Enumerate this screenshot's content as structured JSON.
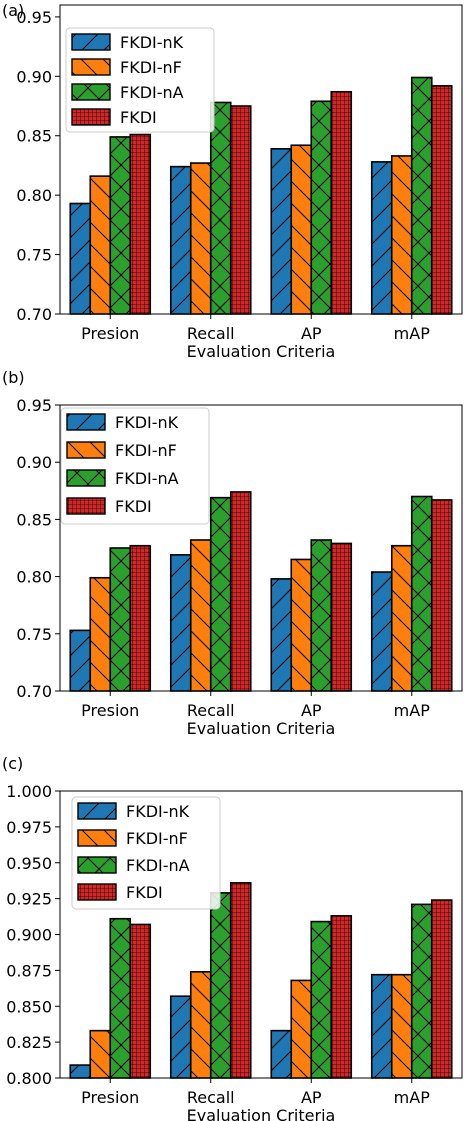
{
  "panels": [
    {
      "label": "(a)",
      "chart_data": {
        "type": "bar",
        "categories": [
          "Presion",
          "Recall",
          "AP",
          "mAP"
        ],
        "xlabel": "Evaluation Criteria",
        "ylabel": "",
        "ylim": [
          0.7,
          0.96
        ],
        "yticks": [
          "0.70",
          "0.75",
          "0.80",
          "0.85",
          "0.90",
          "0.95"
        ],
        "legend_position": "top-left",
        "series": [
          {
            "name": "FKDI-nK",
            "color": "#1f77b4",
            "hatch": "fwd",
            "values": [
              0.793,
              0.824,
              0.839,
              0.828
            ]
          },
          {
            "name": "FKDI-nF",
            "color": "#ff7f0e",
            "hatch": "back",
            "values": [
              0.816,
              0.827,
              0.842,
              0.833
            ]
          },
          {
            "name": "FKDI-nA",
            "color": "#2ca02c",
            "hatch": "cross",
            "values": [
              0.849,
              0.878,
              0.879,
              0.899
            ]
          },
          {
            "name": "FKDI",
            "color": "#d62728",
            "hatch": "grid",
            "values": [
              0.851,
              0.875,
              0.887,
              0.892
            ]
          }
        ]
      }
    },
    {
      "label": "(b)",
      "chart_data": {
        "type": "bar",
        "categories": [
          "Presion",
          "Recall",
          "AP",
          "mAP"
        ],
        "xlabel": "Evaluation Criteria",
        "ylabel": "",
        "ylim": [
          0.7,
          0.95
        ],
        "yticks": [
          "0.70",
          "0.75",
          "0.80",
          "0.85",
          "0.90",
          "0.95"
        ],
        "legend_position": "top-left",
        "series": [
          {
            "name": "FKDI-nK",
            "color": "#1f77b4",
            "hatch": "fwd",
            "values": [
              0.753,
              0.819,
              0.798,
              0.804
            ]
          },
          {
            "name": "FKDI-nF",
            "color": "#ff7f0e",
            "hatch": "back",
            "values": [
              0.799,
              0.832,
              0.815,
              0.827
            ]
          },
          {
            "name": "FKDI-nA",
            "color": "#2ca02c",
            "hatch": "cross",
            "values": [
              0.825,
              0.869,
              0.832,
              0.87
            ]
          },
          {
            "name": "FKDI",
            "color": "#d62728",
            "hatch": "grid",
            "values": [
              0.827,
              0.874,
              0.829,
              0.867
            ]
          }
        ]
      }
    },
    {
      "label": "(c)",
      "chart_data": {
        "type": "bar",
        "categories": [
          "Presion",
          "Recall",
          "AP",
          "mAP"
        ],
        "xlabel": "Evaluation Criteria",
        "ylabel": "",
        "ylim": [
          0.8,
          1.0
        ],
        "yticks": [
          "0.800",
          "0.825",
          "0.850",
          "0.875",
          "0.900",
          "0.925",
          "0.950",
          "0.975",
          "1.000"
        ],
        "legend_position": "top-left",
        "series": [
          {
            "name": "FKDI-nK",
            "color": "#1f77b4",
            "hatch": "fwd",
            "values": [
              0.809,
              0.857,
              0.833,
              0.872
            ]
          },
          {
            "name": "FKDI-nF",
            "color": "#ff7f0e",
            "hatch": "back",
            "values": [
              0.833,
              0.874,
              0.868,
              0.872
            ]
          },
          {
            "name": "FKDI-nA",
            "color": "#2ca02c",
            "hatch": "cross",
            "values": [
              0.911,
              0.929,
              0.909,
              0.921
            ]
          },
          {
            "name": "FKDI",
            "color": "#d62728",
            "hatch": "grid",
            "values": [
              0.907,
              0.936,
              0.913,
              0.924
            ]
          }
        ]
      }
    }
  ]
}
